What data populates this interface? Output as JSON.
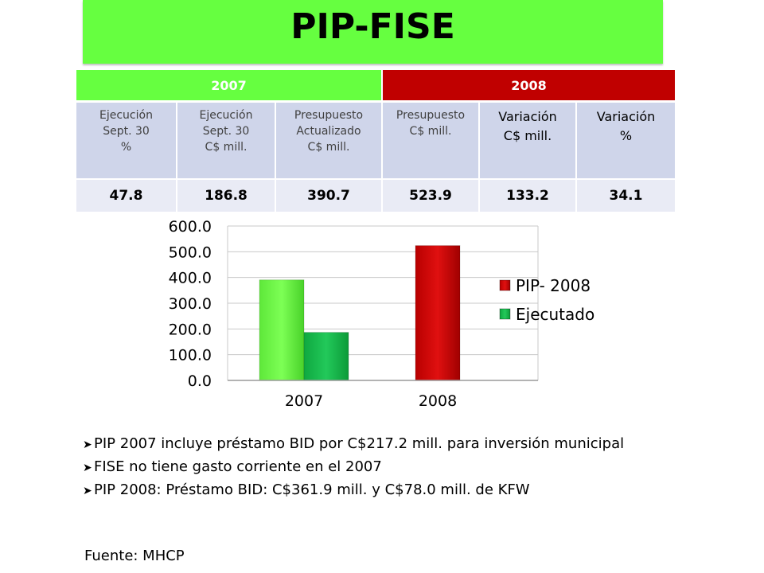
{
  "title": "PIP-FISE",
  "table": {
    "years": [
      "2007",
      "2008"
    ],
    "headers": [
      "Ejecución\nSept. 30\n%",
      "Ejecución\nSept. 30\nC$ mill.",
      "Presupuesto\nActualizado\nC$ mill.",
      "Presupuesto\nC$ mill.",
      "Variación\nC$ mill.",
      "Variación\n%"
    ],
    "values": [
      "47.8",
      "186.8",
      "390.7",
      "523.9",
      "133.2",
      "34.1"
    ]
  },
  "chart_data": {
    "type": "bar",
    "categories": [
      "2007",
      "2008"
    ],
    "series": [
      {
        "name": "PIP- 2008",
        "values": [
          390.7,
          523.9
        ]
      },
      {
        "name": "Ejecutado",
        "values": [
          186.8,
          null
        ]
      }
    ],
    "ylim": [
      0,
      600
    ],
    "yticks": [
      "0.0",
      "100.0",
      "200.0",
      "300.0",
      "400.0",
      "500.0",
      "600.0"
    ],
    "grid": true,
    "legend": "right",
    "colors": {
      "pip_2007": "#5ee83a",
      "pip_2008": "#d00000",
      "ejecutado": "#14b84a"
    }
  },
  "notes": [
    "PIP 2007 incluye préstamo BID por C$217.2 mill. para inversión municipal",
    "FISE no tiene gasto corriente en el 2007",
    "PIP 2008:  Préstamo BID: C$361.9 mill. y C$78.0 mill. de KFW"
  ],
  "note_icon": "arrow-bullet-icon",
  "source": "Fuente: MHCP"
}
